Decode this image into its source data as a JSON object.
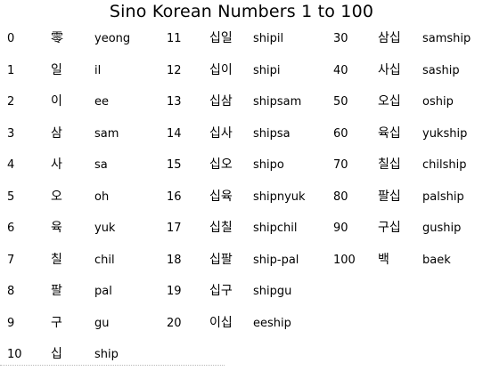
{
  "title": "Sino Korean Numbers 1 to 100",
  "columns": [
    {
      "rows": [
        {
          "num": "0",
          "korean": "零",
          "roman": "yeong"
        },
        {
          "num": "1",
          "korean": "일",
          "roman": "il"
        },
        {
          "num": "2",
          "korean": "이",
          "roman": "ee"
        },
        {
          "num": "3",
          "korean": "삼",
          "roman": "sam"
        },
        {
          "num": "4",
          "korean": "사",
          "roman": "sa"
        },
        {
          "num": "5",
          "korean": "오",
          "roman": "oh"
        },
        {
          "num": "6",
          "korean": "육",
          "roman": "yuk"
        },
        {
          "num": "7",
          "korean": "칠",
          "roman": "chil"
        },
        {
          "num": "8",
          "korean": "팔",
          "roman": "pal"
        },
        {
          "num": "9",
          "korean": "구",
          "roman": "gu"
        },
        {
          "num": "10",
          "korean": "십",
          "roman": "ship"
        }
      ]
    },
    {
      "rows": [
        {
          "num": "11",
          "korean": "십일",
          "roman": "shipil"
        },
        {
          "num": "12",
          "korean": "십이",
          "roman": "shipi"
        },
        {
          "num": "13",
          "korean": "십삼",
          "roman": "shipsam"
        },
        {
          "num": "14",
          "korean": "십사",
          "roman": "shipsa"
        },
        {
          "num": "15",
          "korean": "십오",
          "roman": "shipo"
        },
        {
          "num": "16",
          "korean": "십육",
          "roman": "shipnyuk"
        },
        {
          "num": "17",
          "korean": "십칠",
          "roman": "shipchil"
        },
        {
          "num": "18",
          "korean": "십팔",
          "roman": "ship-pal"
        },
        {
          "num": "19",
          "korean": "십구",
          "roman": "shipgu"
        },
        {
          "num": "20",
          "korean": "이십",
          "roman": "eeship"
        }
      ]
    },
    {
      "rows": [
        {
          "num": "30",
          "korean": "삼십",
          "roman": "samship"
        },
        {
          "num": "40",
          "korean": "사십",
          "roman": "saship"
        },
        {
          "num": "50",
          "korean": "오십",
          "roman": "oship"
        },
        {
          "num": "60",
          "korean": "육십",
          "roman": "yukship"
        },
        {
          "num": "70",
          "korean": "칠십",
          "roman": "chilship"
        },
        {
          "num": "80",
          "korean": "팔십",
          "roman": "palship"
        },
        {
          "num": "90",
          "korean": "구십",
          "roman": "guship"
        },
        {
          "num": "100",
          "korean": "백",
          "roman": "baek"
        }
      ]
    }
  ]
}
